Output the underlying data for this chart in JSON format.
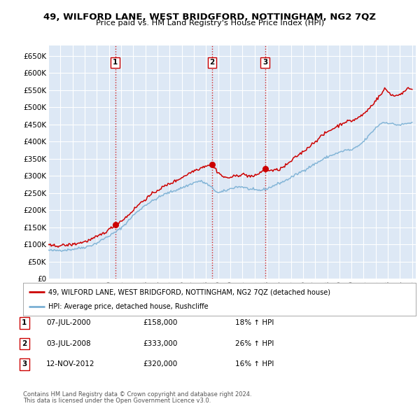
{
  "title": "49, WILFORD LANE, WEST BRIDGFORD, NOTTINGHAM, NG2 7QZ",
  "subtitle": "Price paid vs. HM Land Registry's House Price Index (HPI)",
  "xlim_start": 1995.0,
  "xlim_end": 2025.3,
  "ylim": [
    0,
    680000
  ],
  "yticks": [
    0,
    50000,
    100000,
    150000,
    200000,
    250000,
    300000,
    350000,
    400000,
    450000,
    500000,
    550000,
    600000,
    650000
  ],
  "background_color": "#ffffff",
  "plot_bg_color": "#dde8f5",
  "grid_color": "#ffffff",
  "sale_dates": [
    2000.52,
    2008.5,
    2012.87
  ],
  "sale_prices": [
    158000,
    333000,
    320000
  ],
  "sale_labels": [
    "1",
    "2",
    "3"
  ],
  "vline_color": "#cc0000",
  "hpi_line_color": "#7ab0d4",
  "price_line_color": "#cc0000",
  "legend_entries": [
    "49, WILFORD LANE, WEST BRIDGFORD, NOTTINGHAM, NG2 7QZ (detached house)",
    "HPI: Average price, detached house, Rushcliffe"
  ],
  "table_rows": [
    [
      "1",
      "07-JUL-2000",
      "£158,000",
      "18% ↑ HPI"
    ],
    [
      "2",
      "03-JUL-2008",
      "£333,000",
      "26% ↑ HPI"
    ],
    [
      "3",
      "12-NOV-2012",
      "£320,000",
      "16% ↑ HPI"
    ]
  ],
  "footnote1": "Contains HM Land Registry data © Crown copyright and database right 2024.",
  "footnote2": "This data is licensed under the Open Government Licence v3.0.",
  "hpi_anchors": [
    [
      1995.0,
      83000
    ],
    [
      1995.5,
      82000
    ],
    [
      1996.0,
      83500
    ],
    [
      1996.5,
      84000
    ],
    [
      1997.0,
      86000
    ],
    [
      1997.5,
      89000
    ],
    [
      1998.0,
      92000
    ],
    [
      1998.5,
      97000
    ],
    [
      1999.0,
      104000
    ],
    [
      1999.5,
      115000
    ],
    [
      2000.0,
      125000
    ],
    [
      2000.5,
      135000
    ],
    [
      2001.0,
      148000
    ],
    [
      2001.5,
      165000
    ],
    [
      2002.0,
      185000
    ],
    [
      2002.5,
      200000
    ],
    [
      2003.0,
      215000
    ],
    [
      2003.5,
      225000
    ],
    [
      2004.0,
      235000
    ],
    [
      2004.5,
      245000
    ],
    [
      2005.0,
      252000
    ],
    [
      2005.5,
      258000
    ],
    [
      2006.0,
      265000
    ],
    [
      2006.5,
      272000
    ],
    [
      2007.0,
      280000
    ],
    [
      2007.5,
      285000
    ],
    [
      2008.0,
      278000
    ],
    [
      2008.5,
      265000
    ],
    [
      2009.0,
      250000
    ],
    [
      2009.5,
      255000
    ],
    [
      2010.0,
      262000
    ],
    [
      2010.5,
      268000
    ],
    [
      2011.0,
      268000
    ],
    [
      2011.5,
      262000
    ],
    [
      2012.0,
      258000
    ],
    [
      2012.5,
      258000
    ],
    [
      2013.0,
      262000
    ],
    [
      2013.5,
      270000
    ],
    [
      2014.0,
      278000
    ],
    [
      2014.5,
      285000
    ],
    [
      2015.0,
      295000
    ],
    [
      2015.5,
      305000
    ],
    [
      2016.0,
      315000
    ],
    [
      2016.5,
      325000
    ],
    [
      2017.0,
      335000
    ],
    [
      2017.5,
      345000
    ],
    [
      2018.0,
      355000
    ],
    [
      2018.5,
      362000
    ],
    [
      2019.0,
      368000
    ],
    [
      2019.5,
      375000
    ],
    [
      2020.0,
      375000
    ],
    [
      2020.5,
      385000
    ],
    [
      2021.0,
      400000
    ],
    [
      2021.5,
      420000
    ],
    [
      2022.0,
      440000
    ],
    [
      2022.5,
      455000
    ],
    [
      2023.0,
      455000
    ],
    [
      2023.5,
      450000
    ],
    [
      2024.0,
      448000
    ],
    [
      2024.5,
      452000
    ],
    [
      2025.0,
      455000
    ]
  ],
  "prop_anchors": [
    [
      1995.0,
      97000
    ],
    [
      1995.5,
      96000
    ],
    [
      1996.0,
      97000
    ],
    [
      1996.5,
      98000
    ],
    [
      1997.0,
      100000
    ],
    [
      1997.5,
      104000
    ],
    [
      1998.0,
      108000
    ],
    [
      1998.5,
      114000
    ],
    [
      1999.0,
      122000
    ],
    [
      1999.5,
      132000
    ],
    [
      2000.0,
      143000
    ],
    [
      2000.52,
      158000
    ],
    [
      2001.0,
      168000
    ],
    [
      2001.5,
      182000
    ],
    [
      2002.0,
      200000
    ],
    [
      2002.5,
      218000
    ],
    [
      2003.0,
      232000
    ],
    [
      2003.5,
      245000
    ],
    [
      2004.0,
      258000
    ],
    [
      2004.5,
      268000
    ],
    [
      2005.0,
      277000
    ],
    [
      2005.5,
      285000
    ],
    [
      2006.0,
      295000
    ],
    [
      2006.5,
      305000
    ],
    [
      2007.0,
      315000
    ],
    [
      2007.5,
      322000
    ],
    [
      2008.0,
      330000
    ],
    [
      2008.5,
      333000
    ],
    [
      2009.0,
      310000
    ],
    [
      2009.5,
      295000
    ],
    [
      2010.0,
      295000
    ],
    [
      2010.5,
      300000
    ],
    [
      2011.0,
      305000
    ],
    [
      2011.5,
      300000
    ],
    [
      2012.0,
      298000
    ],
    [
      2012.87,
      320000
    ],
    [
      2013.0,
      318000
    ],
    [
      2013.5,
      315000
    ],
    [
      2014.0,
      318000
    ],
    [
      2014.5,
      328000
    ],
    [
      2015.0,
      342000
    ],
    [
      2015.5,
      358000
    ],
    [
      2016.0,
      370000
    ],
    [
      2016.5,
      385000
    ],
    [
      2017.0,
      400000
    ],
    [
      2017.5,
      415000
    ],
    [
      2018.0,
      428000
    ],
    [
      2018.5,
      438000
    ],
    [
      2019.0,
      448000
    ],
    [
      2019.5,
      458000
    ],
    [
      2020.0,
      460000
    ],
    [
      2020.5,
      468000
    ],
    [
      2021.0,
      480000
    ],
    [
      2021.5,
      498000
    ],
    [
      2022.0,
      520000
    ],
    [
      2022.5,
      540000
    ],
    [
      2022.75,
      555000
    ],
    [
      2023.0,
      545000
    ],
    [
      2023.5,
      532000
    ],
    [
      2024.0,
      538000
    ],
    [
      2024.5,
      548000
    ],
    [
      2024.75,
      558000
    ],
    [
      2025.0,
      552000
    ]
  ]
}
